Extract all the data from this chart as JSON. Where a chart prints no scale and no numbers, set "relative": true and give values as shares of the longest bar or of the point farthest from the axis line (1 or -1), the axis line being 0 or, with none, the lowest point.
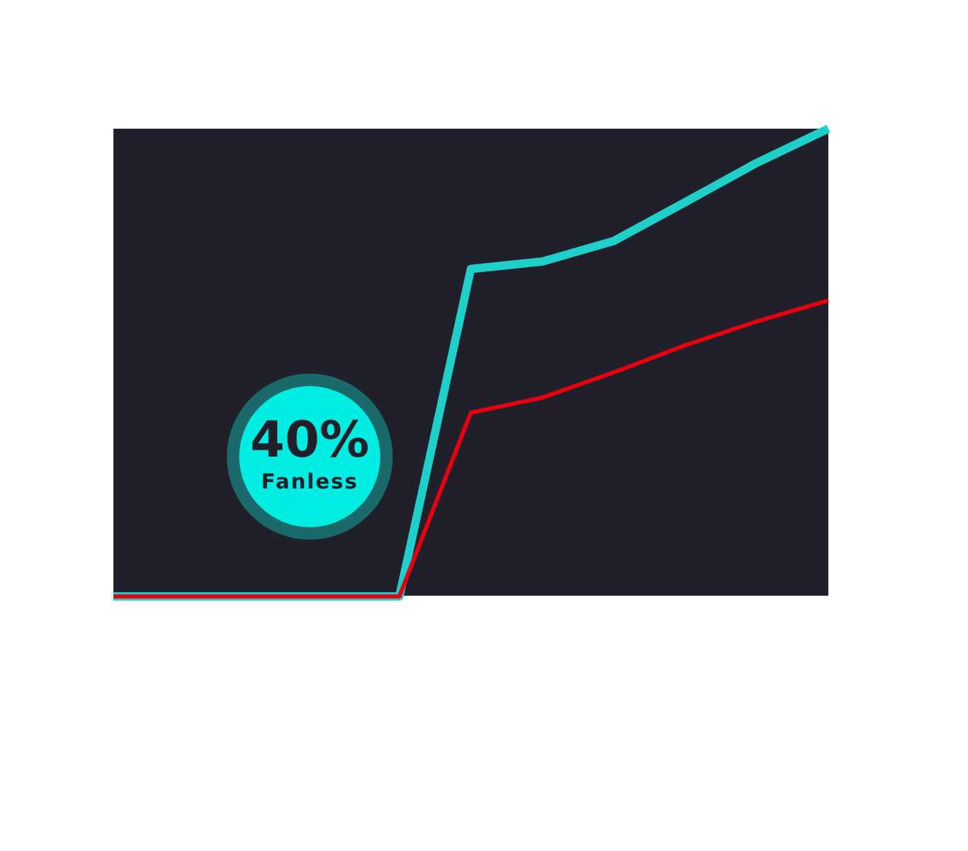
{
  "chart_data": {
    "type": "line",
    "relative": true,
    "categories": [
      null,
      null,
      null,
      null,
      null,
      null,
      null,
      null,
      null,
      null,
      null
    ],
    "series": [
      {
        "color": "#1ecfca",
        "values": [
          0,
          0,
          0,
          0,
          0,
          0.7,
          0.716,
          0.76,
          0.843,
          0.927,
          1
        ]
      },
      {
        "color": "#e8000f",
        "values": [
          0,
          0,
          0,
          0,
          0,
          0.393,
          0.425,
          0.479,
          0.537,
          0.588,
          0.633
        ]
      }
    ],
    "annotations": [
      "40%",
      "Fanless"
    ],
    "tick_labels": false,
    "grid": false
  }
}
